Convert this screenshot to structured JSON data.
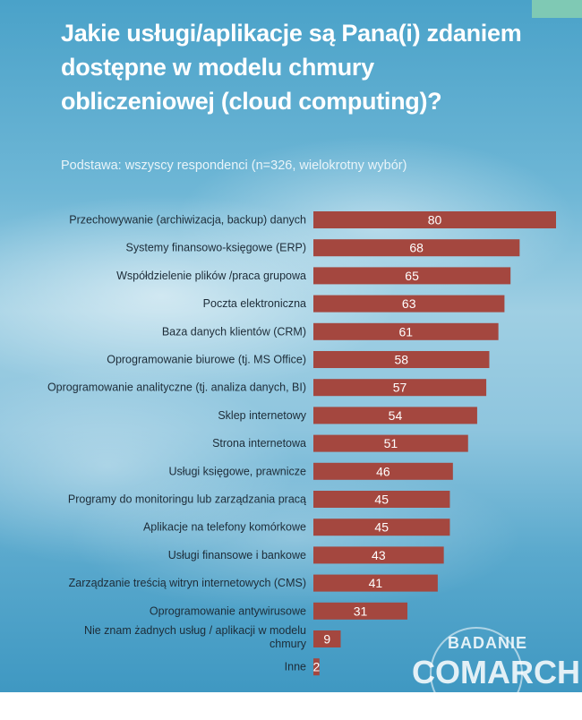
{
  "chart_data": {
    "type": "bar",
    "orientation": "horizontal",
    "title": "Jakie usługi/aplikacje są Pana(i) zdaniem dostępne w modelu chmury obliczeniowej (cloud computing)?",
    "subtitle": "Podstawa: wszyscy respondenci (n=326, wielokrotny wybór)",
    "categories": [
      "Przechowywanie (archiwizacja, backup) danych",
      "Systemy finansowo-księgowe (ERP)",
      "Współdzielenie plików /praca grupowa",
      "Poczta elektroniczna",
      "Baza danych klientów (CRM)",
      "Oprogramowanie biurowe (tj. MS Office)",
      "Oprogramowanie analityczne  (tj. analiza danych, BI)",
      "Sklep internetowy",
      "Strona internetowa",
      "Usługi księgowe, prawnicze",
      "Programy do monitoringu lub zarządzania pracą",
      "Aplikacje na telefony komórkowe",
      "Usługi finansowe i bankowe",
      "Zarządzanie treścią witryn internetowych (CMS)",
      "Oprogramowanie antywirusowe",
      "Nie znam żadnych usług / aplikacji w modelu chmury",
      "Inne"
    ],
    "values": [
      80,
      68,
      65,
      63,
      61,
      58,
      57,
      54,
      51,
      46,
      45,
      45,
      43,
      41,
      31,
      9,
      2
    ],
    "xlim": [
      0,
      80
    ],
    "grid": false,
    "legend": "none",
    "bar_color": "#a4473f"
  },
  "watermark": {
    "line1": "BADANIE",
    "line2": "COMARCH"
  }
}
